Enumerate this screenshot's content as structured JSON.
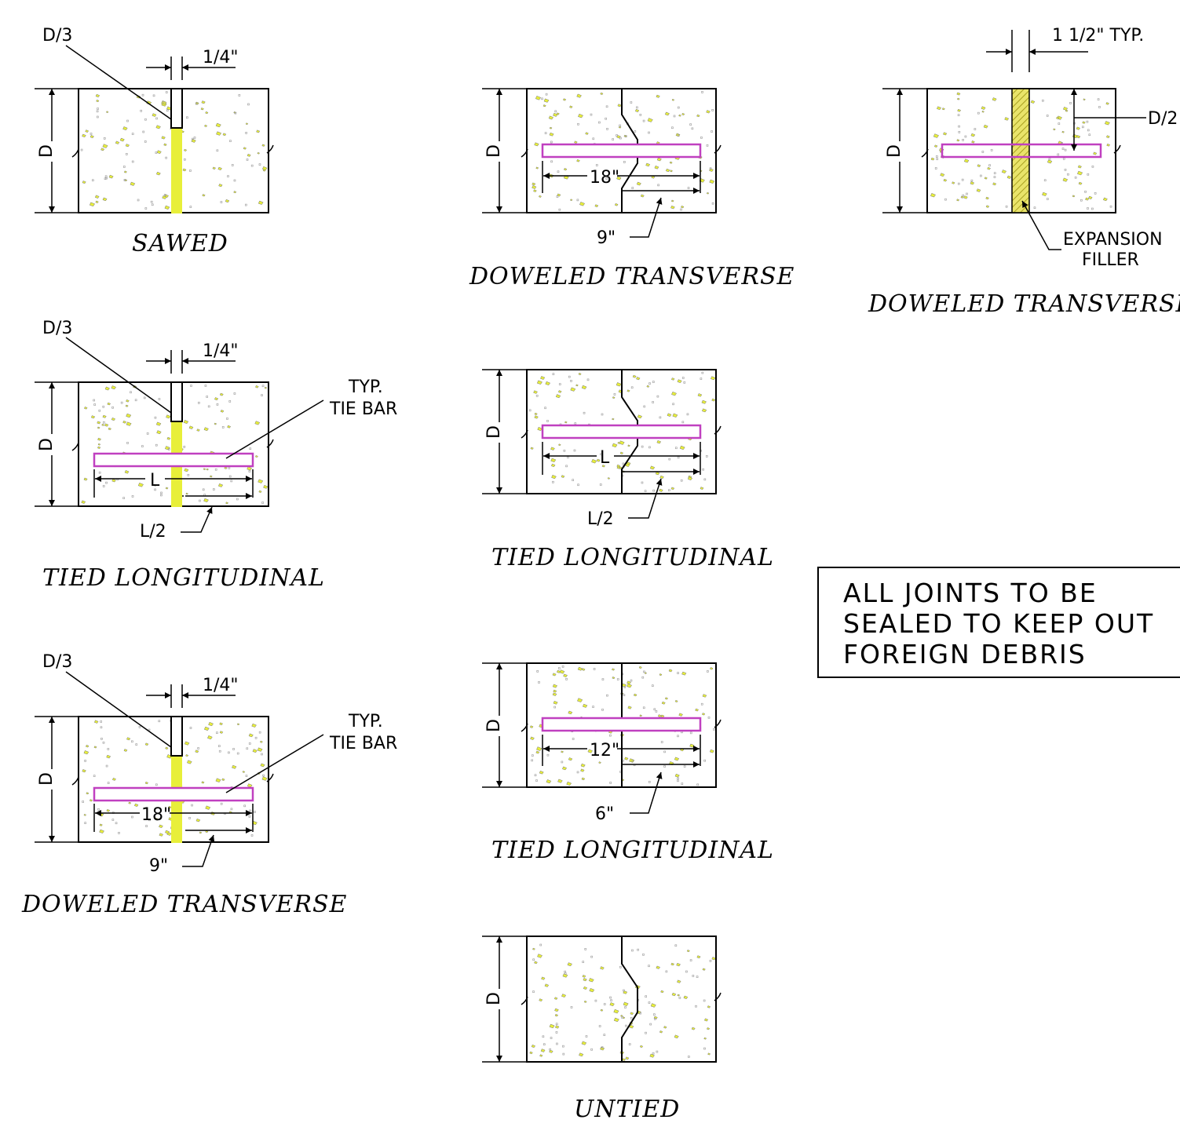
{
  "details": {
    "sawed": {
      "title": "SAWED",
      "groove_depth": "D/3",
      "groove_width": "1/4\"",
      "depth": "D"
    },
    "tied_long_sawed": {
      "title": "TIED LONGITUDINAL",
      "groove_depth": "D/3",
      "groove_width": "1/4\"",
      "depth": "D",
      "bar_label_1": "TYP.",
      "bar_label_2": "TIE BAR",
      "bar_length": "L",
      "half_length": "L/2"
    },
    "doweled_sawed": {
      "title": "DOWELED TRANSVERSE",
      "groove_depth": "D/3",
      "groove_width": "1/4\"",
      "depth": "D",
      "bar_label_1": "TYP.",
      "bar_label_2": "TIE BAR",
      "bar_length": "18\"",
      "half_length": "9\""
    },
    "doweled_keyed": {
      "title": "DOWELED TRANSVERSE",
      "depth": "D",
      "bar_length": "18\"",
      "half_length": "9\""
    },
    "tied_long_keyed_l": {
      "title": "TIED LONGITUDINAL",
      "depth": "D",
      "bar_length": "L",
      "half_length": "L/2"
    },
    "tied_long_butt": {
      "title": "TIED LONGITUDINAL",
      "depth": "D",
      "bar_length": "12\"",
      "half_length": "6\""
    },
    "untied": {
      "title": "UNTIED",
      "depth": "D"
    },
    "doweled_expansion": {
      "title": "DOWELED TRANSVERSE",
      "depth": "D",
      "filler_width": "1 1/2\" TYP.",
      "dowel_depth": "D/2",
      "filler_label_1": "EXPANSION",
      "filler_label_2": "FILLER"
    }
  },
  "note": {
    "line1": "ALL JOINTS TO BE",
    "line2": "SEALED TO KEEP OUT",
    "line3": "FOREIGN DEBRIS"
  },
  "colors": {
    "bar": "#c040c0",
    "aggregate": "#e8ef3a",
    "filler": "#d8d840"
  }
}
